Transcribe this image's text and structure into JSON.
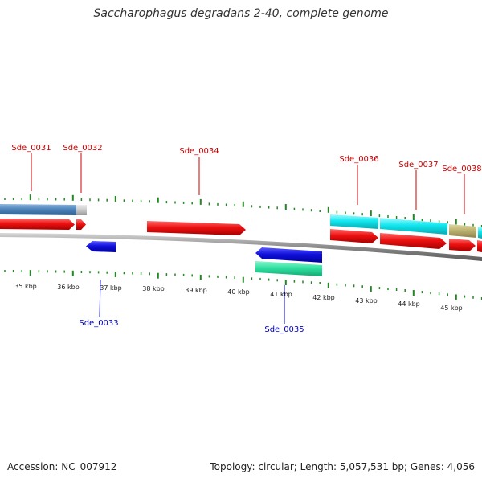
{
  "title": "Saccharophagus degradans 2-40, complete genome",
  "footer": {
    "accession": "Accession: NC_007912",
    "topology": "Topology: circular; Length: 5,057,531 bp; Genes: 4,056"
  },
  "colors": {
    "forward_gene": "#ee1111",
    "reverse_gene": "#1111dd",
    "cds_cyan": "#11e6ee",
    "cds_steelblue": "#4f86bd",
    "cds_olive": "#bdb371",
    "cds_teal_green": "#2fe0a0",
    "gray_feature": "#c8c8c8",
    "tick_green": "#228822",
    "backbone": "#9a9a9a"
  },
  "scale": {
    "unit": "kbp",
    "labels": [
      "35 kbp",
      "36 kbp",
      "37 kbp",
      "38 kbp",
      "39 kbp",
      "40 kbp",
      "41 kbp",
      "42 kbp",
      "43 kbp",
      "44 kbp",
      "45 kbp"
    ]
  },
  "gene_labels": {
    "top": [
      "Sde_0031",
      "Sde_0032",
      "Sde_0034",
      "Sde_0036",
      "Sde_0037",
      "Sde_0038"
    ],
    "bottom": [
      "Sde_0033",
      "Sde_0035"
    ]
  }
}
